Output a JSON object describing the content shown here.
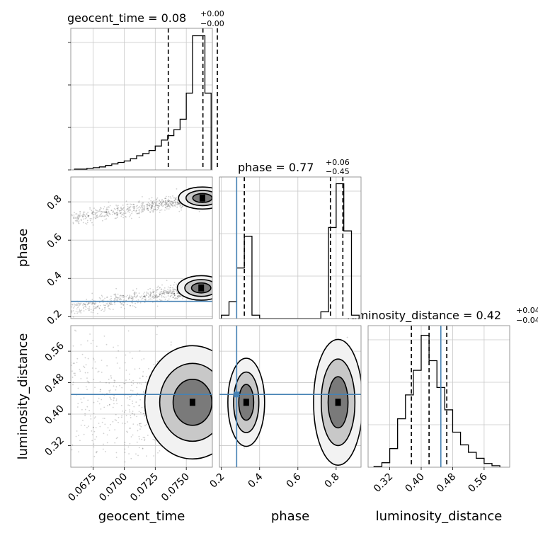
{
  "chart_data": {
    "type": "scatter",
    "subtype": "corner-plot",
    "parameters": [
      {
        "key": "geocent_time",
        "label": "geocent_time",
        "title": {
          "name": "geocent_time",
          "median": "0.08",
          "plus": "+0.00",
          "minus": "−0.00"
        },
        "range": [
          0.0657,
          0.0771
        ],
        "ticks": [
          0.0675,
          0.07,
          0.0725,
          0.075
        ],
        "tick_labels": [
          "0.0675",
          "0.0700",
          "0.0725",
          "0.0750"
        ],
        "quantiles": [
          0.07355,
          0.07634,
          0.0775
        ]
      },
      {
        "key": "phase",
        "label": "phase",
        "title": {
          "name": "phase",
          "median": "0.77",
          "plus": "+0.06",
          "minus": "−0.45"
        },
        "range": [
          0.19,
          0.93
        ],
        "ticks": [
          0.2,
          0.4,
          0.6,
          0.8
        ],
        "tick_labels": [
          "0.2",
          "0.4",
          "0.6",
          "0.8"
        ],
        "quantiles": [
          0.32,
          0.77,
          0.835
        ],
        "truth": 0.28
      },
      {
        "key": "luminosity_distance",
        "label": "luminosity_distance",
        "title": {
          "name": "luminosity_distance",
          "median": "0.42",
          "plus": "+0.04",
          "minus": "−0.04"
        },
        "range": [
          0.265,
          0.625
        ],
        "ticks": [
          0.32,
          0.4,
          0.48,
          0.56
        ],
        "tick_labels": [
          "0.32",
          "0.40",
          "0.48",
          "0.56"
        ],
        "quantiles": [
          0.375,
          0.42,
          0.465
        ],
        "truth": 0.45
      }
    ],
    "histograms": {
      "geocent_time": {
        "edges": [
          0.066,
          0.0665,
          0.067,
          0.0675,
          0.068,
          0.0685,
          0.069,
          0.0695,
          0.07,
          0.0705,
          0.071,
          0.0715,
          0.072,
          0.0725,
          0.073,
          0.0735,
          0.074,
          0.0745,
          0.075,
          0.0755,
          0.076,
          0.0765,
          0.077
        ],
        "counts": [
          1,
          1,
          2,
          3,
          4,
          6,
          8,
          10,
          12,
          15,
          19,
          22,
          26,
          32,
          40,
          46,
          54,
          68,
          103,
          180,
          180,
          103
        ],
        "max": 190
      },
      "phase": {
        "edges": [
          0.2,
          0.24,
          0.28,
          0.32,
          0.36,
          0.4,
          0.44,
          0.48,
          0.52,
          0.56,
          0.6,
          0.64,
          0.68,
          0.72,
          0.76,
          0.8,
          0.84,
          0.88,
          0.92
        ],
        "counts": [
          5,
          25,
          75,
          122,
          5,
          0,
          0,
          0,
          0,
          0,
          0,
          0,
          0,
          10,
          135,
          200,
          130,
          5
        ],
        "max": 210
      },
      "luminosity_distance": {
        "edges": [
          0.28,
          0.3,
          0.32,
          0.34,
          0.36,
          0.38,
          0.4,
          0.42,
          0.44,
          0.46,
          0.48,
          0.5,
          0.52,
          0.54,
          0.56,
          0.58,
          0.6
        ],
        "counts": [
          1,
          6,
          25,
          65,
          97,
          130,
          177,
          143,
          107,
          77,
          47,
          30,
          20,
          12,
          5,
          2
        ],
        "max": 190
      }
    },
    "samples_2d": [
      {
        "x": "geocent_time",
        "y": "phase",
        "modes": [
          {
            "x": 0.0763,
            "y": 0.82,
            "sx": 0.0006,
            "sy": 0.018
          },
          {
            "x": 0.0762,
            "y": 0.35,
            "sx": 0.0006,
            "sy": 0.02
          }
        ]
      },
      {
        "x": "geocent_time",
        "y": "luminosity_distance",
        "modes": [
          {
            "x": 0.0755,
            "y": 0.43,
            "sx": 0.0012,
            "sy": 0.045
          }
        ]
      },
      {
        "x": "phase",
        "y": "luminosity_distance",
        "modes": [
          {
            "x": 0.33,
            "y": 0.43,
            "sx": 0.03,
            "sy": 0.035
          },
          {
            "x": 0.81,
            "y": 0.43,
            "sx": 0.04,
            "sy": 0.05
          }
        ]
      }
    ]
  }
}
